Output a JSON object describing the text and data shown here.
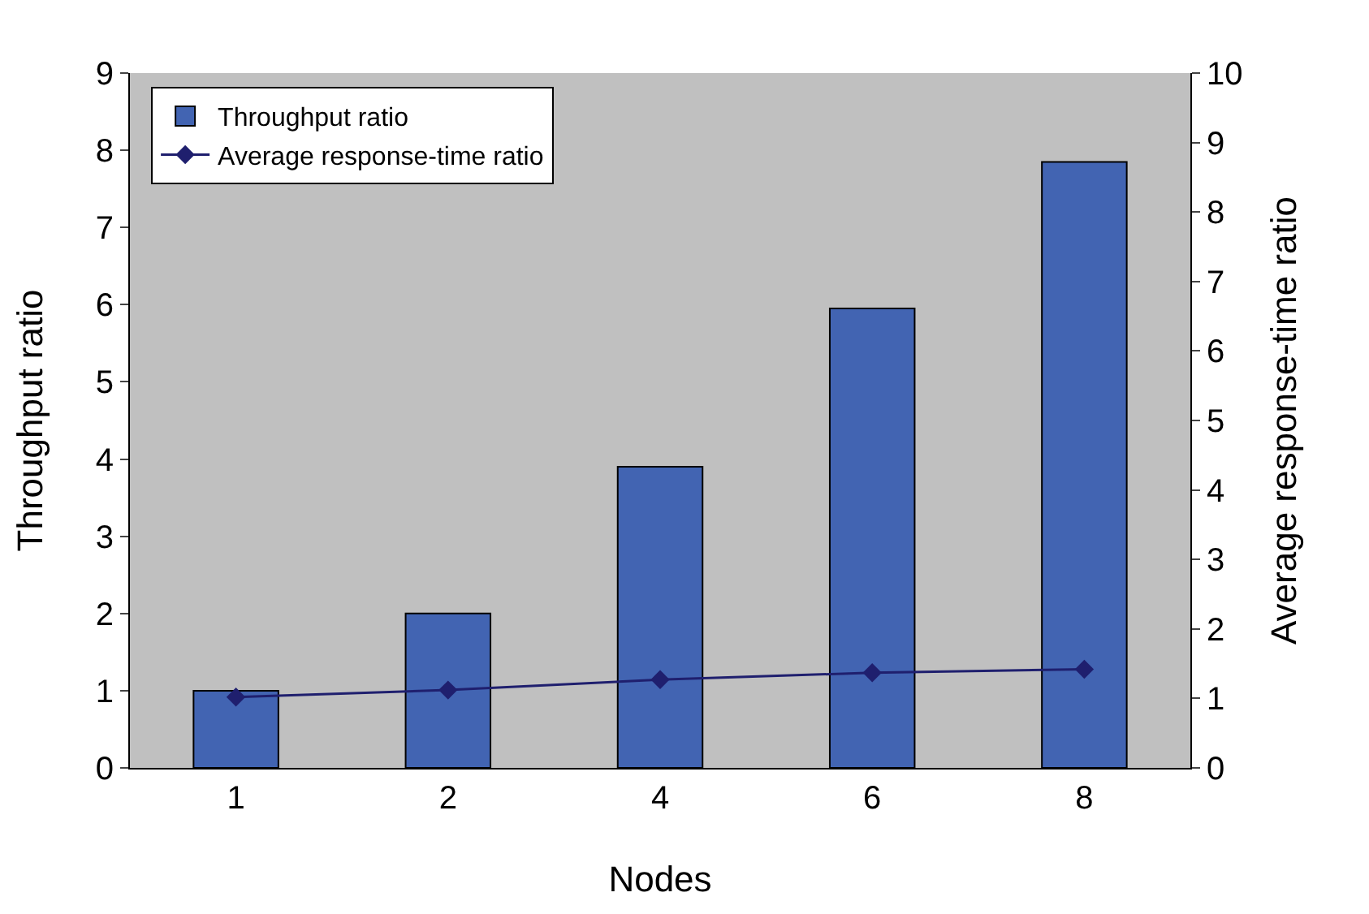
{
  "chart_data": {
    "type": "bar",
    "xlabel": "Nodes",
    "ylabel": "Throughput ratio",
    "y2label": "Average response-time ratio",
    "categories": [
      "1",
      "2",
      "4",
      "6",
      "8"
    ],
    "series": [
      {
        "name": "Throughput ratio",
        "color": "#4264b2",
        "values": [
          1.0,
          2.0,
          3.9,
          5.95,
          7.85
        ]
      },
      {
        "name": "Average response-time ratio",
        "type": "line",
        "axis": "y2",
        "color": "#1f1f6e",
        "marker": "diamond",
        "values": [
          1.02,
          1.12,
          1.27,
          1.37,
          1.42
        ]
      }
    ],
    "ylim": [
      0,
      9
    ],
    "yticks": [
      0,
      1,
      2,
      3,
      4,
      5,
      6,
      7,
      8,
      9
    ],
    "y2lim": [
      0,
      10
    ],
    "y2ticks": [
      0,
      1,
      2,
      3,
      4,
      5,
      6,
      7,
      8,
      9,
      10
    ],
    "grid": false,
    "legend": "top left"
  }
}
